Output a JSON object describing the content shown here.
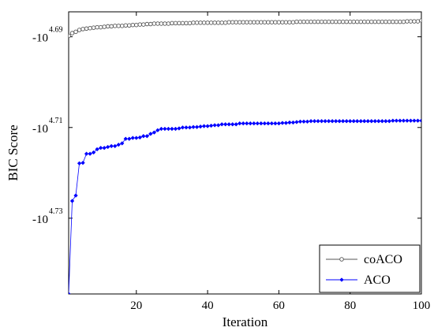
{
  "chart_data": {
    "type": "line",
    "xlabel": "Iteration",
    "ylabel": "BIC Score",
    "xlim": [
      1,
      100
    ],
    "ylim": [
      4.6845,
      4.7467
    ],
    "y_reversed": true,
    "x_ticks": [
      20,
      40,
      60,
      80,
      100
    ],
    "y_ticks": [
      {
        "value": 4.69,
        "base": "-10",
        "exp": "4.69"
      },
      {
        "value": 4.71,
        "base": "-10",
        "exp": "4.71"
      },
      {
        "value": 4.73,
        "base": "-10",
        "exp": "4.73"
      }
    ],
    "y_axis_note": "y values are log10 of |BIC Score|",
    "legend_position": "bottom-right",
    "grid": false,
    "series": [
      {
        "name": "coACO",
        "color": "#555555",
        "marker": "open-circle",
        "x_start": 1,
        "values": [
          4.6898,
          4.6892,
          4.6889,
          4.6885,
          4.6883,
          4.6882,
          4.6881,
          4.688,
          4.6879,
          4.6879,
          4.6878,
          4.6877,
          4.6877,
          4.6876,
          4.6876,
          4.6876,
          4.6875,
          4.6875,
          4.6874,
          4.6874,
          4.6873,
          4.6873,
          4.6872,
          4.6872,
          4.6871,
          4.6871,
          4.6871,
          4.6871,
          4.6871,
          4.687,
          4.687,
          4.687,
          4.687,
          4.687,
          4.687,
          4.6869,
          4.6869,
          4.6869,
          4.6869,
          4.6869,
          4.6869,
          4.6869,
          4.6869,
          4.6869,
          4.6869,
          4.6868,
          4.6868,
          4.6868,
          4.6868,
          4.6868,
          4.6868,
          4.6868,
          4.6868,
          4.6868,
          4.6868,
          4.6868,
          4.6868,
          4.6868,
          4.6868,
          4.6868,
          4.6868,
          4.6868,
          4.6868,
          4.6868,
          4.6867,
          4.6867,
          4.6867,
          4.6867,
          4.6867,
          4.6867,
          4.6867,
          4.6867,
          4.6867,
          4.6867,
          4.6867,
          4.6867,
          4.6867,
          4.6867,
          4.6867,
          4.6867,
          4.6867,
          4.6867,
          4.6867,
          4.6867,
          4.6867,
          4.6867,
          4.6867,
          4.6867,
          4.6867,
          4.6867,
          4.6867,
          4.6867,
          4.6867,
          4.6867,
          4.6867,
          4.6866,
          4.6866,
          4.6866,
          4.6866,
          4.6864
        ]
      },
      {
        "name": "ACO",
        "color": "#0000ff",
        "marker": "filled-diamond",
        "x_start": 1,
        "values": [
          4.7467,
          4.7262,
          4.725,
          4.7179,
          4.7178,
          4.7158,
          4.7158,
          4.7155,
          4.7148,
          4.7145,
          4.7145,
          4.7143,
          4.7141,
          4.7141,
          4.7138,
          4.7135,
          4.7125,
          4.7125,
          4.7123,
          4.7123,
          4.7122,
          4.7119,
          4.7119,
          4.7114,
          4.7111,
          4.7106,
          4.7103,
          4.7103,
          4.7103,
          4.7103,
          4.7103,
          4.7102,
          4.71,
          4.71,
          4.71,
          4.7099,
          4.7099,
          4.7098,
          4.7097,
          4.7097,
          4.7096,
          4.7095,
          4.7095,
          4.7093,
          4.7093,
          4.7093,
          4.7093,
          4.7093,
          4.7091,
          4.7091,
          4.7091,
          4.7091,
          4.7091,
          4.7091,
          4.7091,
          4.7091,
          4.7091,
          4.7091,
          4.7091,
          4.7091,
          4.709,
          4.709,
          4.7089,
          4.7089,
          4.7088,
          4.7087,
          4.7087,
          4.7087,
          4.7086,
          4.7086,
          4.7086,
          4.7086,
          4.7086,
          4.7086,
          4.7086,
          4.7086,
          4.7086,
          4.7086,
          4.7086,
          4.7086,
          4.7086,
          4.7086,
          4.7086,
          4.7086,
          4.7086,
          4.7086,
          4.7086,
          4.7086,
          4.7086,
          4.7086,
          4.7086,
          4.7085,
          4.7085,
          4.7085,
          4.7085,
          4.7085,
          4.7085,
          4.7085,
          4.7085,
          4.7085
        ]
      }
    ]
  }
}
